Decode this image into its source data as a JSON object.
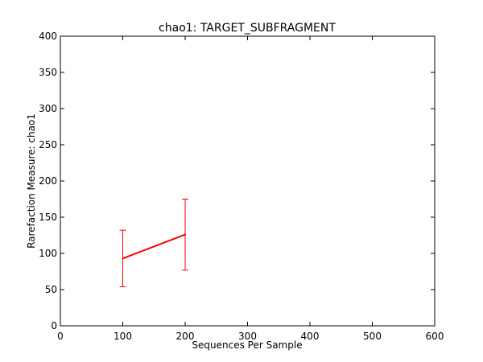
{
  "chart_data": {
    "type": "line",
    "title": "chao1: TARGET_SUBFRAGMENT",
    "xlabel": "Sequences Per Sample",
    "ylabel": "Rarefaction Measure: chao1",
    "xlim": [
      0,
      600
    ],
    "ylim": [
      0,
      400
    ],
    "xticks": [
      0,
      100,
      200,
      300,
      400,
      500,
      600
    ],
    "yticks": [
      0,
      50,
      100,
      150,
      200,
      250,
      300,
      350,
      400
    ],
    "grid": false,
    "series": [
      {
        "color": "#ff0000",
        "x": [
          100,
          200
        ],
        "y": [
          93,
          126
        ],
        "error_low": [
          54,
          77
        ],
        "error_high": [
          132,
          175
        ]
      }
    ]
  }
}
